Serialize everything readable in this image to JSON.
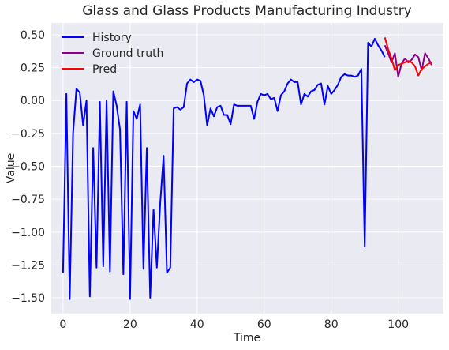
{
  "chart_data": {
    "type": "line",
    "title": "Glass and Glass Products Manufacturing Industry",
    "xlabel": "Time",
    "ylabel": "Value",
    "xlim": [
      -3.5,
      113.5
    ],
    "ylim": [
      -1.62,
      0.59
    ],
    "xticks": [
      0,
      20,
      40,
      60,
      80,
      100
    ],
    "yticks": [
      -1.5,
      -1.25,
      -1.0,
      -0.75,
      -0.5,
      -0.25,
      0.0,
      0.25,
      0.5
    ],
    "ytick_labels": [
      "−1.50",
      "−1.25",
      "−1.00",
      "−0.75",
      "−0.50",
      "−0.25",
      "0.00",
      "0.25",
      "0.50"
    ],
    "grid": true,
    "legend_position": "top-left",
    "background": "#EAEAF2",
    "series": [
      {
        "name": "History",
        "color": "#0000FF",
        "x": [
          0,
          1,
          2,
          3,
          4,
          5,
          6,
          7,
          8,
          9,
          10,
          11,
          12,
          13,
          14,
          15,
          16,
          17,
          18,
          19,
          20,
          21,
          22,
          23,
          24,
          25,
          26,
          27,
          28,
          29,
          30,
          31,
          32,
          33,
          34,
          35,
          36,
          37,
          38,
          39,
          40,
          41,
          42,
          43,
          44,
          45,
          46,
          47,
          48,
          49,
          50,
          51,
          52,
          53,
          54,
          55,
          56,
          57,
          58,
          59,
          60,
          61,
          62,
          63,
          64,
          65,
          66,
          67,
          68,
          69,
          70,
          71,
          72,
          73,
          74,
          75,
          76,
          77,
          78,
          79,
          80,
          81,
          82,
          83,
          84,
          85,
          86,
          87,
          88,
          89,
          90,
          91,
          92,
          93,
          94,
          95,
          96
        ],
        "y": [
          -1.31,
          0.05,
          -1.51,
          -0.25,
          0.09,
          0.06,
          -0.19,
          0.0,
          -1.49,
          -0.36,
          -1.27,
          -0.01,
          -1.26,
          0.0,
          -1.3,
          0.07,
          -0.04,
          -0.22,
          -1.32,
          -0.01,
          -1.51,
          -0.08,
          -0.14,
          -0.03,
          -1.28,
          -0.36,
          -1.5,
          -0.83,
          -1.27,
          -0.78,
          -0.42,
          -1.31,
          -1.27,
          -0.06,
          -0.05,
          -0.07,
          -0.05,
          0.13,
          0.16,
          0.14,
          0.16,
          0.15,
          0.04,
          -0.19,
          -0.06,
          -0.12,
          -0.05,
          -0.04,
          -0.11,
          -0.11,
          -0.18,
          -0.03,
          -0.04,
          -0.04,
          -0.04,
          -0.04,
          -0.04,
          -0.14,
          -0.01,
          0.05,
          0.04,
          0.05,
          0.01,
          0.02,
          -0.08,
          0.04,
          0.07,
          0.13,
          0.16,
          0.14,
          0.14,
          -0.03,
          0.05,
          0.03,
          0.07,
          0.08,
          0.12,
          0.13,
          -0.03,
          0.11,
          0.05,
          0.08,
          0.12,
          0.18,
          0.2,
          0.19,
          0.19,
          0.18,
          0.19,
          0.24,
          -1.11,
          0.44,
          0.41,
          0.47,
          0.42,
          0.38,
          0.33
        ]
      },
      {
        "name": "Ground truth",
        "color": "#8B008B",
        "x": [
          96,
          97,
          98,
          99,
          100,
          101,
          102,
          103,
          104,
          105,
          106,
          107,
          108,
          109,
          110
        ],
        "y": [
          0.42,
          0.36,
          0.29,
          0.36,
          0.18,
          0.28,
          0.32,
          0.29,
          0.31,
          0.35,
          0.33,
          0.23,
          0.36,
          0.32,
          0.27
        ]
      },
      {
        "name": "Pred",
        "color": "#FF0000",
        "x": [
          96,
          97,
          98,
          99,
          100,
          101,
          102,
          103,
          104,
          105,
          106,
          107,
          108,
          109,
          110
        ],
        "y": [
          0.48,
          0.39,
          0.32,
          0.23,
          0.27,
          0.28,
          0.29,
          0.3,
          0.29,
          0.26,
          0.19,
          0.24,
          0.26,
          0.28,
          0.29
        ]
      }
    ]
  }
}
